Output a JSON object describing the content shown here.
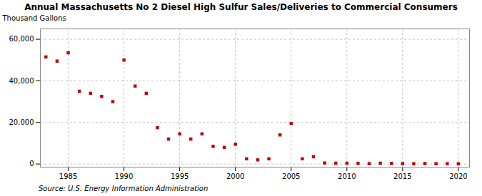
{
  "chart_data": {
    "type": "scatter",
    "title": "Annual Massachusetts No 2 Diesel High Sulfur Sales/Deliveries to Commercial Consumers",
    "ylabel": "Thousand Gallons",
    "annotations": [
      "Source: U.S. Energy Information Administration"
    ],
    "x": [
      1983,
      1984,
      1985,
      1986,
      1987,
      1988,
      1989,
      1990,
      1991,
      1992,
      1993,
      1994,
      1995,
      1996,
      1997,
      1998,
      1999,
      2000,
      2001,
      2002,
      2003,
      2004,
      2005,
      2006,
      2007,
      2008,
      2009,
      2010,
      2011,
      2012,
      2013,
      2014,
      2015,
      2016,
      2017,
      2018,
      2019,
      2020
    ],
    "values": [
      51500,
      49500,
      53500,
      35000,
      34000,
      32500,
      30000,
      50000,
      37500,
      34000,
      17500,
      12000,
      14500,
      12000,
      14500,
      8500,
      8000,
      9500,
      2500,
      2000,
      2500,
      14000,
      19500,
      2500,
      3500,
      500,
      400,
      400,
      300,
      200,
      400,
      300,
      200,
      150,
      250,
      150,
      150,
      100
    ],
    "color": "#bb0000",
    "marker": "square",
    "xlim": [
      1982.5,
      2021
    ],
    "ylim": [
      -1500,
      65000
    ],
    "xticks": [
      1985,
      1990,
      1995,
      2000,
      2005,
      2010,
      2015,
      2020
    ],
    "yticks": [
      0,
      {
        "value": 20000,
        "label": "20,000"
      },
      {
        "value": 40000,
        "label": "40,000"
      },
      {
        "value": 60000,
        "label": "60,000"
      }
    ],
    "grid": true
  }
}
